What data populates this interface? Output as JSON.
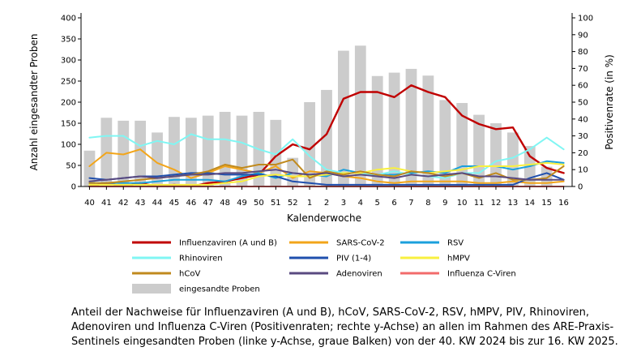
{
  "chart_data": {
    "type": "bar",
    "categories": [
      "40",
      "41",
      "42",
      "43",
      "44",
      "45",
      "46",
      "47",
      "48",
      "49",
      "50",
      "51",
      "52",
      "1",
      "2",
      "3",
      "4",
      "5",
      "6",
      "7",
      "8",
      "9",
      "10",
      "11",
      "12",
      "13",
      "14",
      "15",
      "16"
    ],
    "xlabel": "Kalenderwoche",
    "ylabel": "Anzahl eingesandter Proben",
    "y2label": "Positivenrate (in %)",
    "ylim": [
      0,
      400
    ],
    "y2lim": [
      0,
      100
    ],
    "yticks": [
      0,
      50,
      100,
      150,
      200,
      250,
      300,
      350,
      400
    ],
    "y2ticks": [
      0,
      10,
      20,
      30,
      40,
      50,
      60,
      70,
      80,
      90,
      100
    ],
    "grid": false,
    "legend_position": "bottom",
    "bars": {
      "name": "eingesandte Proben",
      "color": "#cccccc",
      "axis": "left",
      "values": [
        85,
        163,
        156,
        156,
        128,
        165,
        163,
        168,
        177,
        168,
        177,
        158,
        68,
        200,
        229,
        322,
        334,
        262,
        270,
        279,
        263,
        205,
        198,
        170,
        150,
        128,
        96,
        47,
        0
      ]
    },
    "series": [
      {
        "name": "Influenzaviren (A und B)",
        "color": "#c00000",
        "axis": "right",
        "values": [
          0,
          2,
          0,
          2,
          0,
          1,
          0,
          2,
          3,
          5,
          7,
          18,
          25,
          22,
          31,
          52,
          56,
          56,
          53,
          60,
          56,
          53,
          42,
          37,
          34,
          35,
          18,
          11,
          8
        ]
      },
      {
        "name": "SARS-CoV-2",
        "color": "#f2a51a",
        "axis": "right",
        "values": [
          12,
          20,
          19,
          22,
          14,
          10,
          5,
          8,
          12,
          10,
          8,
          12,
          5,
          9,
          8,
          6,
          5,
          3,
          2,
          3,
          3,
          3,
          3,
          2,
          2,
          3,
          2,
          2,
          3
        ]
      },
      {
        "name": "RSV",
        "color": "#1ba0dc",
        "axis": "right",
        "values": [
          2,
          2,
          2,
          2,
          3,
          4,
          4,
          4,
          3,
          6,
          8,
          5,
          8,
          7,
          6,
          10,
          8,
          7,
          7,
          8,
          9,
          8,
          12,
          12,
          12,
          10,
          12,
          15,
          14
        ]
      },
      {
        "name": "Rhinoviren",
        "color": "#80f6f3",
        "axis": "right",
        "values": [
          29,
          30,
          30,
          24,
          27,
          25,
          31,
          28,
          28,
          26,
          22,
          19,
          28,
          18,
          10,
          8,
          8,
          7,
          9,
          7,
          6,
          5,
          8,
          8,
          15,
          17,
          22,
          29,
          22
        ]
      },
      {
        "name": "PIV (1-4)",
        "color": "#1f4fad",
        "axis": "right",
        "values": [
          5,
          4,
          5,
          6,
          6,
          7,
          8,
          8,
          7,
          7,
          7,
          6,
          3,
          2,
          1,
          1,
          1,
          1,
          1,
          1,
          1,
          1,
          1,
          1,
          1,
          1,
          5,
          8,
          4
        ]
      },
      {
        "name": "hMPV",
        "color": "#f8f03f",
        "axis": "right",
        "values": [
          1,
          1,
          1,
          1,
          1,
          1,
          1,
          1,
          2,
          3,
          6,
          7,
          6,
          6,
          7,
          8,
          8,
          10,
          11,
          9,
          8,
          9,
          10,
          12,
          12,
          12,
          13,
          14,
          13
        ]
      },
      {
        "name": "hCoV",
        "color": "#c08a1e",
        "axis": "right",
        "values": [
          2,
          2,
          3,
          4,
          5,
          6,
          7,
          9,
          13,
          11,
          13,
          13,
          16,
          5,
          9,
          7,
          9,
          7,
          6,
          9,
          8,
          6,
          8,
          5,
          8,
          4,
          4,
          5,
          12
        ]
      },
      {
        "name": "Adenoviren",
        "color": "#5a4a80",
        "axis": "right",
        "values": [
          3,
          4,
          5,
          6,
          5,
          6,
          7,
          7,
          8,
          8,
          9,
          10,
          8,
          7,
          8,
          6,
          7,
          6,
          5,
          7,
          6,
          7,
          8,
          6,
          6,
          5,
          4,
          4,
          4
        ]
      },
      {
        "name": "Influenza C-Viren",
        "color": "#f26b6b",
        "axis": "right",
        "values": [
          0,
          0,
          0,
          0,
          0,
          0,
          0,
          0,
          0,
          0,
          0,
          0,
          0,
          0,
          0,
          0,
          0,
          0,
          0,
          0,
          0,
          0,
          0,
          0,
          0,
          0,
          0,
          0,
          0
        ]
      }
    ]
  },
  "caption": "Anteil der Nachweise für Influenzaviren (A und B), hCoV, SARS-CoV-2, RSV, hMPV, PIV, Rhinoviren, Adenoviren und Influenza C-Viren (Positivenraten; rechte y-Achse) an allen im Rahmen des ARE-Praxis-Sentinels eingesandten Proben (linke y-Achse, graue Balken) von der 40. KW 2024 bis zur 16. KW 2025."
}
